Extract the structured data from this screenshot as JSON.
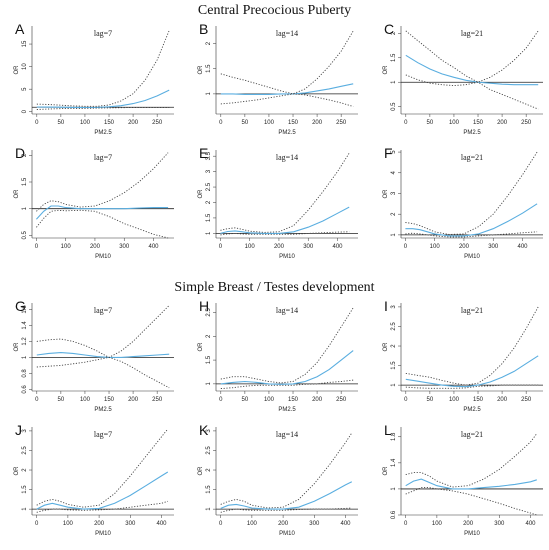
{
  "sections": [
    {
      "title": "Central Precocious Puberty"
    },
    {
      "title": "Simple Breast / Testes development"
    }
  ],
  "colors": {
    "estimate": "#5aaee0",
    "ci": "#444444",
    "reference": "#222222"
  },
  "chart_data": [
    {
      "type": "line",
      "panel": "A",
      "lag_label": "lag=7",
      "xlabel": "PM2.5",
      "ylabel": "OR",
      "xlim": [
        -10,
        285
      ],
      "ylim": [
        -0.5,
        19
      ],
      "xticks": [
        0,
        50,
        100,
        150,
        200,
        250
      ],
      "yticks": [
        0,
        5,
        10,
        15
      ],
      "x": [
        0,
        25,
        50,
        75,
        100,
        125,
        150,
        175,
        200,
        225,
        250,
        275
      ],
      "series": [
        {
          "values": [
            1.05,
            1.02,
            1.0,
            0.97,
            0.95,
            0.97,
            1.1,
            1.35,
            1.8,
            2.5,
            3.5,
            4.8
          ]
        },
        {
          "values": [
            1.7,
            1.6,
            1.45,
            1.3,
            1.2,
            1.2,
            1.5,
            2.4,
            4.0,
            7.0,
            11.5,
            18.0
          ]
        },
        {
          "values": [
            0.5,
            0.6,
            0.7,
            0.75,
            0.75,
            0.8,
            0.85,
            0.9,
            0.95,
            0.95,
            0.95,
            0.95
          ]
        }
      ]
    },
    {
      "type": "line",
      "panel": "B",
      "lag_label": "lag=14",
      "xlabel": "PM2.5",
      "ylabel": "OR",
      "xlim": [
        -10,
        285
      ],
      "ylim": [
        0.6,
        2.35
      ],
      "xticks": [
        0,
        50,
        100,
        150,
        200,
        250
      ],
      "yticks": [
        1.0,
        1.5,
        2.0
      ],
      "x": [
        0,
        25,
        50,
        75,
        100,
        125,
        150,
        175,
        200,
        225,
        250,
        275
      ],
      "series": [
        {
          "values": [
            1.0,
            1.0,
            0.99,
            0.99,
            0.99,
            1.0,
            1.0,
            1.02,
            1.06,
            1.1,
            1.15,
            1.2
          ]
        },
        {
          "values": [
            1.4,
            1.33,
            1.27,
            1.2,
            1.13,
            1.06,
            1.0,
            1.1,
            1.3,
            1.55,
            1.85,
            2.25
          ]
        },
        {
          "values": [
            0.8,
            0.82,
            0.85,
            0.88,
            0.92,
            0.96,
            1.0,
            0.98,
            0.93,
            0.88,
            0.82,
            0.75
          ]
        }
      ]
    },
    {
      "type": "line",
      "panel": "C",
      "lag_label": "lag=21",
      "xlabel": "PM2.5",
      "ylabel": "OR",
      "xlim": [
        -10,
        285
      ],
      "ylim": [
        0.35,
        2.15
      ],
      "xticks": [
        0,
        50,
        100,
        150,
        200,
        250
      ],
      "yticks": [
        0.5,
        1.0,
        1.5,
        2.0
      ],
      "x": [
        0,
        25,
        50,
        75,
        100,
        125,
        150,
        175,
        200,
        225,
        250,
        275
      ],
      "series": [
        {
          "values": [
            1.55,
            1.4,
            1.27,
            1.17,
            1.1,
            1.04,
            1.0,
            0.98,
            0.96,
            0.95,
            0.95,
            0.95
          ]
        },
        {
          "values": [
            2.05,
            1.85,
            1.65,
            1.45,
            1.3,
            1.13,
            1.0,
            1.1,
            1.25,
            1.45,
            1.7,
            2.05
          ]
        },
        {
          "values": [
            1.15,
            1.05,
            0.98,
            0.95,
            0.93,
            0.95,
            1.0,
            0.85,
            0.75,
            0.65,
            0.55,
            0.45
          ]
        }
      ]
    },
    {
      "type": "line",
      "panel": "D",
      "lag_label": "lag=7",
      "xlabel": "PM10",
      "ylabel": "OR",
      "xlim": [
        -15,
        470
      ],
      "ylim": [
        0.45,
        2.1
      ],
      "xticks": [
        0,
        100,
        200,
        300,
        400
      ],
      "yticks": [
        0.5,
        1.0,
        1.5,
        2.0
      ],
      "x": [
        0,
        25,
        50,
        75,
        100,
        150,
        200,
        250,
        300,
        350,
        400,
        450
      ],
      "series": [
        {
          "values": [
            0.8,
            0.95,
            1.05,
            1.05,
            1.02,
            1.0,
            1.0,
            1.0,
            1.0,
            1.01,
            1.02,
            1.02
          ]
        },
        {
          "values": [
            0.95,
            1.08,
            1.15,
            1.13,
            1.08,
            1.03,
            1.05,
            1.15,
            1.3,
            1.5,
            1.75,
            2.05
          ]
        },
        {
          "values": [
            0.65,
            0.82,
            0.95,
            0.97,
            0.96,
            0.97,
            0.95,
            0.85,
            0.72,
            0.62,
            0.52,
            0.45
          ]
        }
      ]
    },
    {
      "type": "line",
      "panel": "E",
      "lag_label": "lag=14",
      "xlabel": "PM10",
      "ylabel": "OR",
      "xlim": [
        -15,
        470
      ],
      "ylim": [
        0.85,
        3.7
      ],
      "xticks": [
        0,
        100,
        200,
        300,
        400
      ],
      "yticks": [
        1.0,
        1.5,
        2.0,
        2.5,
        3.0,
        3.5
      ],
      "x": [
        0,
        25,
        50,
        75,
        100,
        150,
        200,
        250,
        300,
        350,
        400,
        440
      ],
      "series": [
        {
          "values": [
            1.0,
            1.06,
            1.08,
            1.05,
            1.02,
            1.0,
            1.0,
            1.05,
            1.2,
            1.4,
            1.65,
            1.85
          ]
        },
        {
          "values": [
            1.1,
            1.15,
            1.18,
            1.13,
            1.07,
            1.03,
            1.05,
            1.25,
            1.75,
            2.35,
            3.0,
            3.6
          ]
        },
        {
          "values": [
            0.95,
            0.98,
            1.0,
            0.98,
            0.97,
            0.97,
            0.97,
            0.97,
            1.0,
            1.02,
            1.04,
            1.05
          ]
        }
      ]
    },
    {
      "type": "line",
      "panel": "F",
      "lag_label": "lag=21",
      "xlabel": "PM10",
      "ylabel": "OR",
      "xlim": [
        -15,
        470
      ],
      "ylim": [
        0.85,
        5.1
      ],
      "xticks": [
        0,
        100,
        200,
        300,
        400
      ],
      "yticks": [
        1,
        2,
        3,
        4,
        5
      ],
      "x": [
        0,
        25,
        50,
        75,
        100,
        150,
        200,
        250,
        300,
        350,
        400,
        450
      ],
      "series": [
        {
          "values": [
            1.3,
            1.3,
            1.25,
            1.15,
            1.05,
            0.95,
            0.95,
            1.05,
            1.3,
            1.65,
            2.05,
            2.5
          ]
        },
        {
          "values": [
            1.6,
            1.55,
            1.45,
            1.3,
            1.15,
            1.02,
            1.05,
            1.4,
            2.0,
            2.9,
            3.9,
            5.0
          ]
        },
        {
          "values": [
            1.05,
            1.08,
            1.05,
            1.0,
            0.95,
            0.9,
            0.9,
            0.95,
            1.0,
            1.05,
            1.1,
            1.15
          ]
        }
      ]
    },
    {
      "type": "line",
      "panel": "G",
      "lag_label": "lag=7",
      "xlabel": "PM2.5",
      "ylabel": "OR",
      "xlim": [
        -10,
        285
      ],
      "ylim": [
        0.58,
        1.68
      ],
      "xticks": [
        0,
        50,
        100,
        150,
        200,
        250
      ],
      "yticks": [
        0.6,
        0.8,
        1.0,
        1.2,
        1.4,
        1.6
      ],
      "x": [
        0,
        25,
        50,
        75,
        100,
        125,
        150,
        175,
        200,
        225,
        250,
        275
      ],
      "series": [
        {
          "values": [
            1.03,
            1.05,
            1.06,
            1.05,
            1.03,
            1.01,
            1.0,
            1.0,
            1.01,
            1.02,
            1.03,
            1.04
          ]
        },
        {
          "values": [
            1.2,
            1.22,
            1.23,
            1.2,
            1.15,
            1.08,
            1.0,
            1.08,
            1.2,
            1.35,
            1.5,
            1.65
          ]
        },
        {
          "values": [
            0.88,
            0.89,
            0.9,
            0.92,
            0.94,
            0.97,
            1.0,
            0.95,
            0.87,
            0.78,
            0.7,
            0.62
          ]
        }
      ]
    },
    {
      "type": "line",
      "panel": "H",
      "lag_label": "lag=14",
      "xlabel": "PM2.5",
      "ylabel": "OR",
      "xlim": [
        -10,
        285
      ],
      "ylim": [
        0.85,
        2.7
      ],
      "xticks": [
        0,
        50,
        100,
        150,
        200,
        250
      ],
      "yticks": [
        1.0,
        1.5,
        2.0,
        2.5
      ],
      "x": [
        0,
        25,
        50,
        75,
        100,
        125,
        150,
        175,
        200,
        225,
        250,
        275
      ],
      "series": [
        {
          "values": [
            1.0,
            1.03,
            1.05,
            1.03,
            1.0,
            0.99,
            1.0,
            1.05,
            1.15,
            1.3,
            1.5,
            1.7
          ]
        },
        {
          "values": [
            1.1,
            1.15,
            1.15,
            1.1,
            1.05,
            1.02,
            1.05,
            1.2,
            1.45,
            1.8,
            2.2,
            2.6
          ]
        },
        {
          "values": [
            0.9,
            0.92,
            0.95,
            0.97,
            0.97,
            0.97,
            0.97,
            0.99,
            1.0,
            1.03,
            1.05,
            1.08
          ]
        }
      ]
    },
    {
      "type": "line",
      "panel": "I",
      "lag_label": "lag=21",
      "xlabel": "PM2.5",
      "ylabel": "OR",
      "xlim": [
        -10,
        285
      ],
      "ylim": [
        0.85,
        3.1
      ],
      "xticks": [
        0,
        50,
        100,
        150,
        200,
        250
      ],
      "yticks": [
        1.0,
        1.5,
        2.0,
        2.5,
        3.0
      ],
      "x": [
        0,
        25,
        50,
        75,
        100,
        125,
        150,
        175,
        200,
        225,
        250,
        275
      ],
      "series": [
        {
          "values": [
            1.15,
            1.1,
            1.05,
            1.0,
            0.97,
            0.96,
            1.0,
            1.08,
            1.2,
            1.35,
            1.55,
            1.75
          ]
        },
        {
          "values": [
            1.3,
            1.25,
            1.2,
            1.12,
            1.05,
            1.0,
            1.05,
            1.25,
            1.55,
            1.95,
            2.45,
            3.0
          ]
        },
        {
          "values": [
            0.95,
            0.93,
            0.92,
            0.92,
            0.92,
            0.93,
            0.97,
            0.98,
            1.0,
            1.0,
            1.0,
            1.0
          ]
        }
      ]
    },
    {
      "type": "line",
      "panel": "J",
      "lag_label": "lag=7",
      "xlabel": "PM10",
      "ylabel": "OR",
      "xlim": [
        -15,
        440
      ],
      "ylim": [
        0.85,
        3.1
      ],
      "xticks": [
        0,
        100,
        200,
        300,
        400
      ],
      "yticks": [
        1.0,
        1.5,
        2.0,
        2.5,
        3.0
      ],
      "x": [
        0,
        25,
        50,
        75,
        100,
        150,
        200,
        250,
        300,
        350,
        400,
        420
      ],
      "series": [
        {
          "values": [
            1.0,
            1.1,
            1.15,
            1.1,
            1.05,
            1.0,
            1.02,
            1.15,
            1.35,
            1.6,
            1.85,
            1.95
          ]
        },
        {
          "values": [
            1.1,
            1.2,
            1.25,
            1.2,
            1.12,
            1.05,
            1.1,
            1.4,
            1.85,
            2.35,
            2.85,
            3.05
          ]
        },
        {
          "values": [
            0.92,
            0.97,
            1.0,
            1.0,
            0.98,
            0.97,
            0.98,
            1.0,
            1.05,
            1.1,
            1.15,
            1.2
          ]
        }
      ]
    },
    {
      "type": "line",
      "panel": "K",
      "lag_label": "lag=14",
      "xlabel": "PM10",
      "ylabel": "OR",
      "xlim": [
        -15,
        440
      ],
      "ylim": [
        0.85,
        3.1
      ],
      "xticks": [
        0,
        100,
        200,
        300,
        400
      ],
      "yticks": [
        1.0,
        1.5,
        2.0,
        2.5,
        3.0
      ],
      "x": [
        0,
        25,
        50,
        75,
        100,
        150,
        200,
        250,
        300,
        350,
        400,
        420
      ],
      "series": [
        {
          "values": [
            1.02,
            1.1,
            1.12,
            1.08,
            1.03,
            1.0,
            1.0,
            1.05,
            1.2,
            1.4,
            1.62,
            1.7
          ]
        },
        {
          "values": [
            1.12,
            1.2,
            1.25,
            1.2,
            1.1,
            1.03,
            1.05,
            1.25,
            1.65,
            2.15,
            2.7,
            2.95
          ]
        },
        {
          "values": [
            0.92,
            0.97,
            1.0,
            0.98,
            0.97,
            0.97,
            0.97,
            0.99,
            1.0,
            1.0,
            1.02,
            1.03
          ]
        }
      ]
    },
    {
      "type": "line",
      "panel": "L",
      "lag_label": "lag=21",
      "xlabel": "PM10",
      "ylabel": "OR",
      "xlim": [
        -15,
        440
      ],
      "ylim": [
        0.6,
        1.95
      ],
      "xticks": [
        0,
        100,
        200,
        300,
        400
      ],
      "yticks": [
        0.6,
        1.0,
        1.4,
        1.8
      ],
      "x": [
        0,
        25,
        50,
        75,
        100,
        150,
        200,
        250,
        300,
        350,
        400,
        420
      ],
      "series": [
        {
          "values": [
            1.05,
            1.12,
            1.15,
            1.1,
            1.05,
            1.0,
            1.0,
            1.02,
            1.04,
            1.07,
            1.11,
            1.14
          ]
        },
        {
          "values": [
            1.22,
            1.25,
            1.25,
            1.2,
            1.12,
            1.03,
            1.05,
            1.15,
            1.3,
            1.5,
            1.72,
            1.85
          ]
        },
        {
          "values": [
            0.92,
            0.97,
            1.02,
            1.02,
            1.0,
            0.97,
            0.92,
            0.85,
            0.78,
            0.7,
            0.63,
            0.6
          ]
        }
      ]
    }
  ]
}
